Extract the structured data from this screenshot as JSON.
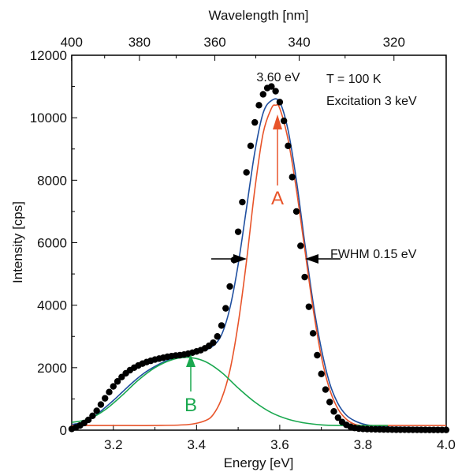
{
  "chart_data": {
    "type": "scatter",
    "title": "",
    "xlabel": "Energy [eV]",
    "ylabel": "Intensity [cps]",
    "x2label": "Wavelength [nm]",
    "xlim": [
      3.1,
      4.0
    ],
    "ylim": [
      0,
      12000
    ],
    "x_ticks": [
      3.2,
      3.4,
      3.6,
      3.8,
      4.0
    ],
    "x_tick_labels": [
      "3.2",
      "3.4",
      "3.6",
      "3.8",
      "4.0"
    ],
    "y_ticks": [
      0,
      2000,
      4000,
      6000,
      8000,
      10000,
      12000
    ],
    "y_tick_labels": [
      "0",
      "2000",
      "4000",
      "6000",
      "8000",
      "10000",
      "12000"
    ],
    "x2_ticks_nm": [
      400,
      380,
      360,
      340,
      320
    ],
    "x2_tick_labels": [
      "400",
      "380",
      "360",
      "340",
      "320"
    ],
    "grid": false,
    "legend": "none",
    "series": [
      {
        "kind": "points",
        "color": "#000000",
        "x": [
          3.1,
          3.11,
          3.12,
          3.13,
          3.14,
          3.15,
          3.16,
          3.17,
          3.18,
          3.19,
          3.2,
          3.21,
          3.22,
          3.23,
          3.24,
          3.25,
          3.26,
          3.27,
          3.28,
          3.29,
          3.3,
          3.31,
          3.32,
          3.33,
          3.34,
          3.35,
          3.36,
          3.37,
          3.38,
          3.39,
          3.4,
          3.41,
          3.42,
          3.43,
          3.44,
          3.45,
          3.46,
          3.47,
          3.48,
          3.49,
          3.5,
          3.51,
          3.52,
          3.53,
          3.54,
          3.55,
          3.56,
          3.57,
          3.58,
          3.59,
          3.6,
          3.61,
          3.62,
          3.63,
          3.64,
          3.65,
          3.66,
          3.67,
          3.68,
          3.69,
          3.7,
          3.71,
          3.72,
          3.73,
          3.74,
          3.75,
          3.76,
          3.77,
          3.78,
          3.79,
          3.8,
          3.81,
          3.82,
          3.83,
          3.84,
          3.85,
          3.86,
          3.87,
          3.88,
          3.89,
          3.9,
          3.91,
          3.92,
          3.93,
          3.94,
          3.95,
          3.96,
          3.97,
          3.98,
          3.99,
          4.0
        ],
        "y": [
          40,
          90,
          150,
          230,
          330,
          460,
          620,
          820,
          1020,
          1220,
          1400,
          1560,
          1700,
          1820,
          1920,
          2000,
          2070,
          2130,
          2180,
          2220,
          2260,
          2290,
          2320,
          2350,
          2370,
          2390,
          2400,
          2420,
          2450,
          2480,
          2520,
          2560,
          2620,
          2700,
          2800,
          3000,
          3350,
          3900,
          4600,
          5450,
          6350,
          7300,
          8250,
          9100,
          9850,
          10400,
          10750,
          10950,
          11000,
          10850,
          10500,
          9900,
          9100,
          8100,
          7000,
          5900,
          4900,
          3950,
          3100,
          2400,
          1800,
          1300,
          900,
          600,
          400,
          260,
          170,
          110,
          70,
          50,
          40,
          35,
          30,
          28,
          25,
          22,
          20,
          18,
          16,
          15,
          14,
          13,
          12,
          11,
          10,
          10,
          9,
          9,
          8,
          8,
          8
        ]
      },
      {
        "kind": "fit",
        "name": "",
        "color": "#1f4fa0",
        "x": [
          3.1,
          3.12,
          3.14,
          3.16,
          3.18,
          3.2,
          3.22,
          3.24,
          3.26,
          3.28,
          3.3,
          3.32,
          3.34,
          3.36,
          3.38,
          3.4,
          3.42,
          3.44,
          3.46,
          3.48,
          3.5,
          3.52,
          3.54,
          3.56,
          3.58,
          3.6,
          3.62,
          3.64,
          3.66,
          3.68,
          3.7,
          3.72,
          3.74,
          3.76,
          3.78,
          3.8,
          3.82,
          3.84,
          3.86,
          3.9,
          3.95,
          4.0
        ],
        "y": [
          180,
          230,
          330,
          500,
          720,
          950,
          1200,
          1450,
          1680,
          1880,
          2040,
          2180,
          2290,
          2370,
          2420,
          2480,
          2560,
          2700,
          3050,
          3900,
          5300,
          7100,
          8900,
          10150,
          10550,
          10500,
          9600,
          8000,
          6000,
          4100,
          2600,
          1500,
          850,
          480,
          300,
          200,
          150,
          120,
          100,
          90,
          80,
          70
        ]
      },
      {
        "kind": "component",
        "name": "A",
        "color": "#e8542a",
        "x": [
          3.1,
          3.2,
          3.3,
          3.38,
          3.42,
          3.44,
          3.46,
          3.48,
          3.5,
          3.52,
          3.54,
          3.56,
          3.58,
          3.59,
          3.6,
          3.62,
          3.64,
          3.66,
          3.68,
          3.7,
          3.72,
          3.74,
          3.76,
          3.78,
          3.8,
          3.84,
          3.9,
          4.0
        ],
        "y": [
          150,
          150,
          150,
          180,
          300,
          500,
          1000,
          1900,
          3400,
          5400,
          7700,
          9500,
          10300,
          10400,
          10300,
          9300,
          7700,
          5800,
          3900,
          2350,
          1300,
          680,
          350,
          190,
          150,
          150,
          150,
          150
        ]
      },
      {
        "kind": "component",
        "name": "B",
        "color": "#1aa84f",
        "x": [
          3.1,
          3.14,
          3.18,
          3.22,
          3.26,
          3.3,
          3.34,
          3.38,
          3.42,
          3.46,
          3.5,
          3.54,
          3.58,
          3.62,
          3.66,
          3.7,
          3.74,
          3.78,
          3.82,
          3.86
        ],
        "y": [
          250,
          350,
          650,
          1100,
          1600,
          2000,
          2250,
          2330,
          2200,
          1850,
          1350,
          900,
          560,
          350,
          230,
          170,
          150,
          150,
          150,
          150
        ]
      }
    ],
    "annotations": {
      "peak_label": "3.60 eV",
      "temperature": "T = 100 K",
      "excitation": "Excitation 3 keV",
      "fwhm": "FWHM 0.15 eV",
      "label_a": "A",
      "label_b": "B"
    }
  },
  "colors": {
    "component_a": "#e8542a",
    "component_b": "#1aa84f",
    "fit": "#1f4fa0",
    "points": "#000000"
  }
}
